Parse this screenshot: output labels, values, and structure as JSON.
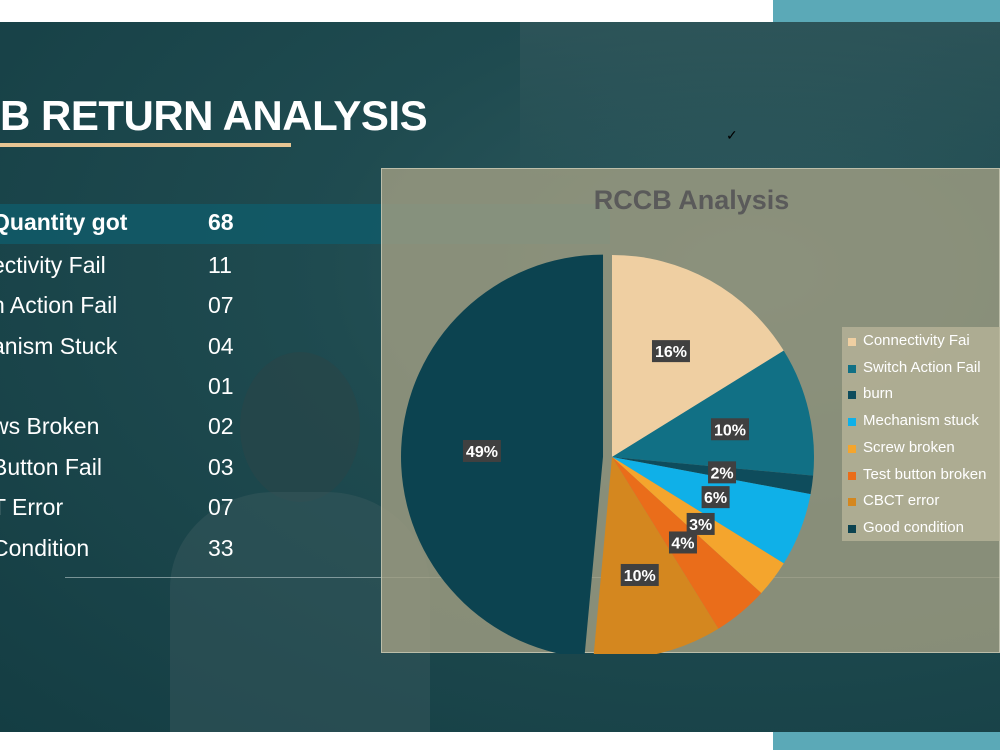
{
  "slide": {
    "title": "B RETURN ANALYSIS",
    "checkmark": "✓"
  },
  "table": {
    "rows": [
      {
        "label": "Quantity got",
        "value": "68",
        "header": true
      },
      {
        "label": "ectivity Fail",
        "value": "11"
      },
      {
        "label": "h Action Fail",
        "value": "07"
      },
      {
        "label": "anism Stuck",
        "value": "04"
      },
      {
        "label": "",
        "value": "01"
      },
      {
        "label": "ws Broken",
        "value": "02"
      },
      {
        "label": "Button Fail",
        "value": "03"
      },
      {
        "label": "T Error",
        "value": "07"
      },
      {
        "label": "Condition",
        "value": "33"
      }
    ]
  },
  "chart_data": {
    "type": "pie",
    "title": "RCCB Analysis",
    "legend_position": "right",
    "slices": [
      {
        "name": "Connectivity Fai",
        "value": 11,
        "label": "16%",
        "color": "#efcfa2"
      },
      {
        "name": "Switch Action Fail",
        "value": 7,
        "label": "10%",
        "color": "#117085"
      },
      {
        "name": "burn",
        "value": 1,
        "label": "2%",
        "color": "#0e4c5c"
      },
      {
        "name": "Mechanism stuck",
        "value": 4,
        "label": "6%",
        "color": "#0fb0e8"
      },
      {
        "name": "Screw broken",
        "value": 2,
        "label": "3%",
        "color": "#f4a52d"
      },
      {
        "name": "Test button broken",
        "value": 3,
        "label": "4%",
        "color": "#ea6d1a"
      },
      {
        "name": "CBCT error",
        "value": 7,
        "label": "10%",
        "color": "#d4871f"
      },
      {
        "name": "Good condition",
        "value": 33,
        "label": "49%",
        "color": "#0c4350"
      }
    ]
  }
}
